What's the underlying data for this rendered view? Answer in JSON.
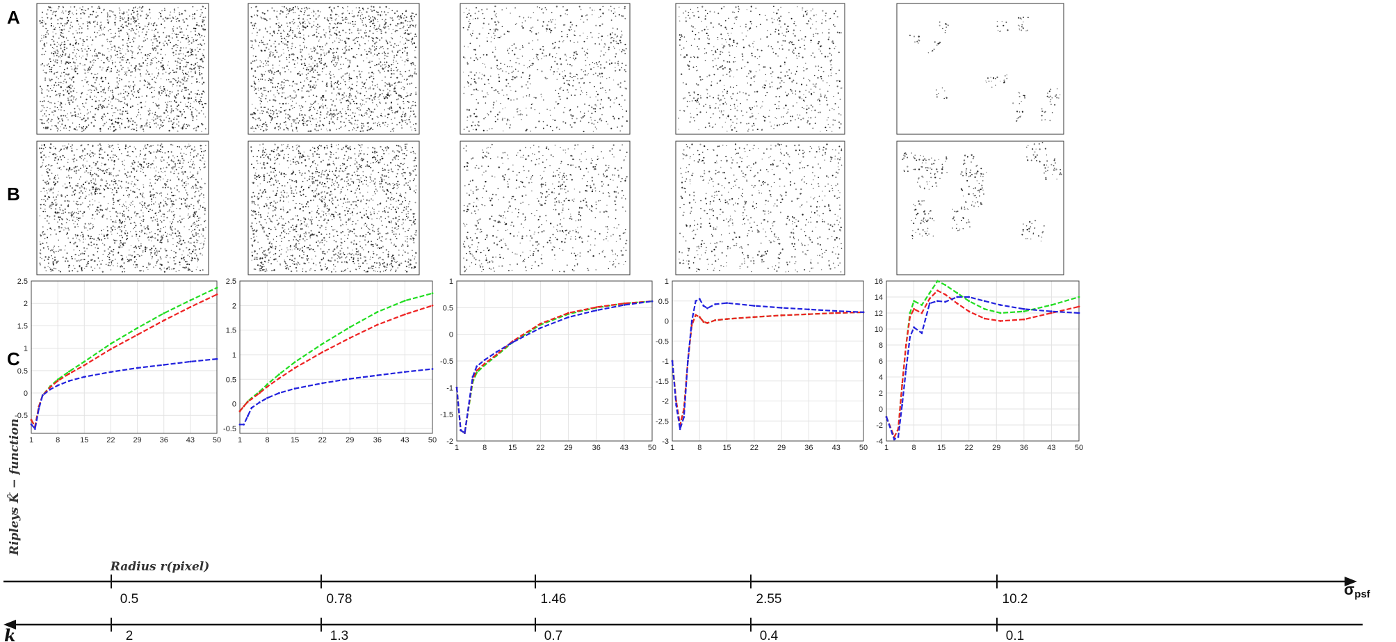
{
  "figure": {
    "row_labels": [
      "A",
      "B",
      "C"
    ],
    "ylabel": "Ripleys K̂ − function",
    "xlabel": "Radius r(pixel)",
    "series_colors": [
      "#22dd22",
      "#ee2222",
      "#2222dd"
    ]
  },
  "scatter_panels": [
    {
      "row": "A",
      "density": "high",
      "pattern": "random"
    },
    {
      "row": "A",
      "density": "high",
      "pattern": "random"
    },
    {
      "row": "A",
      "density": "medium",
      "pattern": "random"
    },
    {
      "row": "A",
      "density": "medium",
      "pattern": "random"
    },
    {
      "row": "A",
      "density": "low",
      "pattern": "clustered"
    },
    {
      "row": "B",
      "density": "high",
      "pattern": "random"
    },
    {
      "row": "B",
      "density": "high",
      "pattern": "random"
    },
    {
      "row": "B",
      "density": "medium",
      "pattern": "random"
    },
    {
      "row": "B",
      "density": "medium",
      "pattern": "random"
    },
    {
      "row": "B",
      "density": "medium",
      "pattern": "clustered"
    }
  ],
  "chart_data": [
    {
      "type": "line",
      "xlim": [
        1,
        50
      ],
      "xticks": [
        1,
        8,
        15,
        22,
        29,
        36,
        43,
        50
      ],
      "ylim": [
        -0.9,
        2.5
      ],
      "yticks": [
        -0.5,
        0,
        0.5,
        1,
        1.5,
        2,
        2.5
      ],
      "ylabel": "Ripleys K̂ − function",
      "xlabel": "Radius r(pixel)",
      "grid": true,
      "x": [
        1,
        2,
        3,
        4,
        6,
        8,
        11,
        15,
        22,
        29,
        36,
        43,
        50
      ],
      "series": [
        {
          "color": "#22dd22",
          "values": [
            -0.6,
            -0.75,
            -0.3,
            -0.05,
            0.15,
            0.3,
            0.48,
            0.7,
            1.1,
            1.45,
            1.78,
            2.07,
            2.35
          ]
        },
        {
          "color": "#ee2222",
          "values": [
            -0.6,
            -0.75,
            -0.3,
            -0.05,
            0.13,
            0.27,
            0.43,
            0.62,
            0.98,
            1.3,
            1.62,
            1.92,
            2.2
          ]
        },
        {
          "color": "#2222dd",
          "values": [
            -0.7,
            -0.8,
            -0.35,
            -0.05,
            0.08,
            0.17,
            0.27,
            0.36,
            0.47,
            0.56,
            0.63,
            0.7,
            0.76
          ]
        }
      ]
    },
    {
      "type": "line",
      "xlim": [
        1,
        50
      ],
      "xticks": [
        1,
        8,
        15,
        22,
        29,
        36,
        43,
        50
      ],
      "ylim": [
        -0.6,
        2.5
      ],
      "yticks": [
        -0.5,
        0,
        0.5,
        1,
        1.5,
        2,
        2.5
      ],
      "grid": true,
      "x": [
        1,
        2,
        3,
        4,
        6,
        8,
        11,
        15,
        22,
        29,
        36,
        43,
        50
      ],
      "series": [
        {
          "color": "#22dd22",
          "values": [
            -0.15,
            -0.05,
            0.05,
            0.12,
            0.25,
            0.4,
            0.6,
            0.85,
            1.22,
            1.56,
            1.87,
            2.1,
            2.25
          ]
        },
        {
          "color": "#ee2222",
          "values": [
            -0.15,
            -0.05,
            0.04,
            0.1,
            0.22,
            0.35,
            0.52,
            0.73,
            1.05,
            1.34,
            1.61,
            1.82,
            2.0
          ]
        },
        {
          "color": "#2222dd",
          "values": [
            -0.42,
            -0.42,
            -0.25,
            -0.08,
            0.03,
            0.12,
            0.22,
            0.31,
            0.42,
            0.51,
            0.58,
            0.65,
            0.71
          ]
        }
      ]
    },
    {
      "type": "line",
      "xlim": [
        1,
        50
      ],
      "xticks": [
        1,
        8,
        15,
        22,
        29,
        36,
        43,
        50
      ],
      "ylim": [
        -2,
        1
      ],
      "yticks": [
        -2,
        -1.5,
        -1,
        -0.5,
        0,
        0.5,
        1
      ],
      "grid": true,
      "x": [
        1,
        2,
        3,
        5,
        6,
        8,
        11,
        15,
        22,
        29,
        36,
        43,
        50
      ],
      "series": [
        {
          "color": "#22dd22",
          "values": [
            -1.0,
            -1.8,
            -1.85,
            -0.9,
            -0.72,
            -0.58,
            -0.4,
            -0.15,
            0.18,
            0.38,
            0.5,
            0.58,
            0.62
          ]
        },
        {
          "color": "#ee2222",
          "values": [
            -1.0,
            -1.8,
            -1.85,
            -0.85,
            -0.68,
            -0.55,
            -0.38,
            -0.13,
            0.2,
            0.4,
            0.51,
            0.58,
            0.62
          ]
        },
        {
          "color": "#2222dd",
          "values": [
            -1.0,
            -1.8,
            -1.85,
            -0.8,
            -0.6,
            -0.48,
            -0.33,
            -0.15,
            0.12,
            0.32,
            0.45,
            0.55,
            0.62
          ]
        }
      ]
    },
    {
      "type": "line",
      "xlim": [
        1,
        50
      ],
      "xticks": [
        1,
        8,
        15,
        22,
        29,
        36,
        43,
        50
      ],
      "ylim": [
        -3,
        1
      ],
      "yticks": [
        -3,
        -2.5,
        -2,
        -1.5,
        -1,
        -0.5,
        0,
        0.5,
        1
      ],
      "grid": true,
      "x": [
        1,
        2,
        3,
        4,
        5,
        6,
        7,
        8,
        9,
        10,
        12,
        15,
        22,
        29,
        36,
        43,
        50
      ],
      "series": [
        {
          "color": "#22dd22",
          "values": [
            -1.0,
            -2.0,
            -2.6,
            -2.2,
            -1.0,
            -0.1,
            0.15,
            0.1,
            -0.02,
            -0.05,
            0.02,
            0.05,
            0.1,
            0.14,
            0.17,
            0.2,
            0.22
          ]
        },
        {
          "color": "#ee2222",
          "values": [
            -1.0,
            -2.0,
            -2.6,
            -2.2,
            -1.0,
            -0.1,
            0.15,
            0.1,
            -0.02,
            -0.05,
            0.02,
            0.05,
            0.1,
            0.14,
            0.17,
            0.2,
            0.22
          ]
        },
        {
          "color": "#2222dd",
          "values": [
            -1.0,
            -2.1,
            -2.7,
            -2.4,
            -1.0,
            0.0,
            0.5,
            0.55,
            0.38,
            0.32,
            0.42,
            0.45,
            0.38,
            0.33,
            0.29,
            0.25,
            0.22
          ]
        }
      ]
    },
    {
      "type": "line",
      "xlim": [
        1,
        50
      ],
      "xticks": [
        1,
        8,
        15,
        22,
        29,
        36,
        43,
        50
      ],
      "ylim": [
        -4,
        16
      ],
      "yticks": [
        -4,
        -2,
        0,
        2,
        4,
        6,
        8,
        10,
        12,
        14,
        16
      ],
      "grid": true,
      "x": [
        1,
        3,
        4,
        5,
        6,
        7,
        8,
        10,
        12,
        14,
        16,
        19,
        22,
        26,
        30,
        36,
        43,
        50
      ],
      "series": [
        {
          "color": "#22dd22",
          "values": [
            -1.0,
            -3.5,
            -2.5,
            3.0,
            8.0,
            12.0,
            13.5,
            13.0,
            14.5,
            16.0,
            15.5,
            14.5,
            13.5,
            12.5,
            12.0,
            12.2,
            13.0,
            14.0
          ]
        },
        {
          "color": "#ee2222",
          "values": [
            -1.0,
            -3.5,
            -2.5,
            3.0,
            8.0,
            11.5,
            12.5,
            12.0,
            13.8,
            14.8,
            14.3,
            13.2,
            12.2,
            11.3,
            11.0,
            11.2,
            12.0,
            12.8
          ]
        },
        {
          "color": "#2222dd",
          "values": [
            -1.0,
            -3.8,
            -3.5,
            0.5,
            5.0,
            9.0,
            10.2,
            9.5,
            13.2,
            13.5,
            13.4,
            14.0,
            14.0,
            13.5,
            13.0,
            12.5,
            12.2,
            12.0
          ]
        }
      ]
    }
  ],
  "scales": {
    "sigma": {
      "title_main": "σ",
      "title_sub": "psf",
      "labels": [
        "0.5",
        "0.78",
        "1.46",
        "2.55",
        "10.2"
      ]
    },
    "k": {
      "title": "k",
      "labels": [
        "2",
        "1.3",
        "0.7",
        "0.4",
        "0.1"
      ]
    }
  }
}
